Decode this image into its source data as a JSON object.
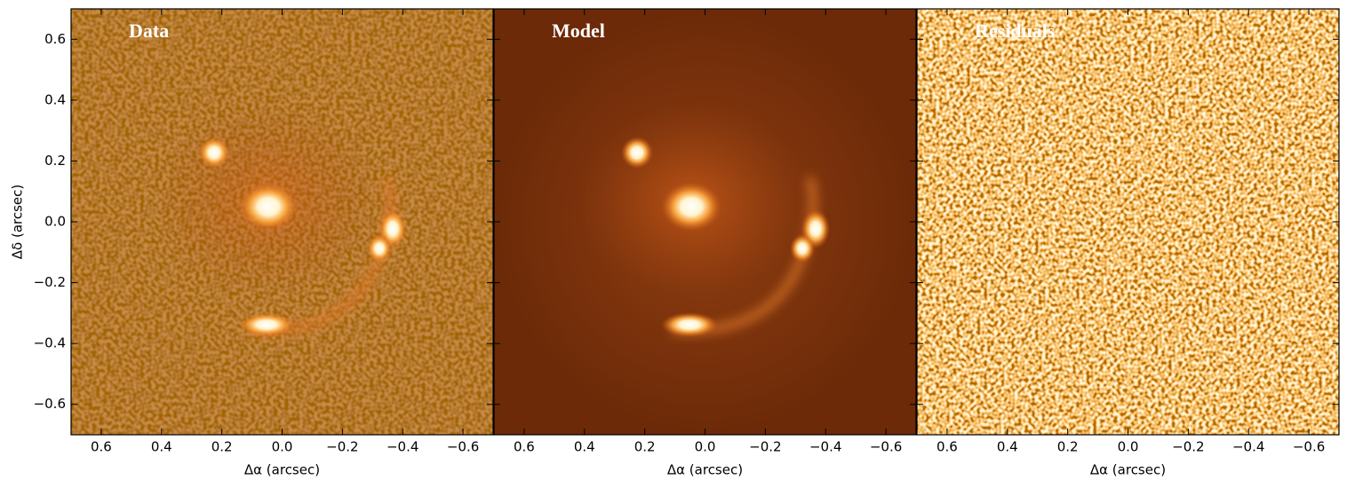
{
  "chart_data": [
    {
      "type": "image",
      "title": "Data",
      "xlabel": "Δα (arcsec)",
      "ylabel": "Δδ (arcsec)",
      "xlim": [
        0.7,
        -0.7
      ],
      "xticks": [
        0.6,
        0.4,
        0.2,
        {
          "value": 0,
          "label": "0.0"
        },
        {
          "value": -0.2,
          "label": "−0.2"
        },
        {
          "value": -0.4,
          "label": "−0.4"
        },
        {
          "value": -0.6,
          "label": "−0.6"
        }
      ],
      "ylim": [
        -0.7,
        0.7
      ],
      "yticks": [
        {
          "value": -0.6,
          "label": "−0.6"
        },
        {
          "value": -0.4,
          "label": "−0.4"
        },
        {
          "value": -0.2,
          "label": "−0.2"
        },
        {
          "value": 0,
          "label": "0.0"
        },
        0.2,
        0.4,
        0.6
      ]
    },
    {
      "type": "image",
      "title": "Model",
      "xlabel": "Δα (arcsec)",
      "xlim": [
        0.7,
        -0.7
      ],
      "xticks": [
        0.6,
        0.4,
        0.2,
        {
          "value": 0,
          "label": "0.0"
        },
        {
          "value": -0.2,
          "label": "−0.2"
        },
        {
          "value": -0.4,
          "label": "−0.4"
        },
        {
          "value": -0.6,
          "label": "−0.6"
        }
      ],
      "ylim": [
        -0.7,
        0.7
      ]
    },
    {
      "type": "image",
      "title": "Residuals",
      "xlabel": "Δα (arcsec)",
      "xlim": [
        0.7,
        -0.7
      ],
      "xticks": [
        0.6,
        0.4,
        0.2,
        {
          "value": 0,
          "label": "0.0"
        },
        {
          "value": -0.2,
          "label": "−0.2"
        },
        {
          "value": -0.4,
          "label": "−0.4"
        },
        {
          "value": -0.6,
          "label": "−0.6"
        }
      ],
      "ylim": [
        -0.7,
        0.7
      ]
    }
  ]
}
